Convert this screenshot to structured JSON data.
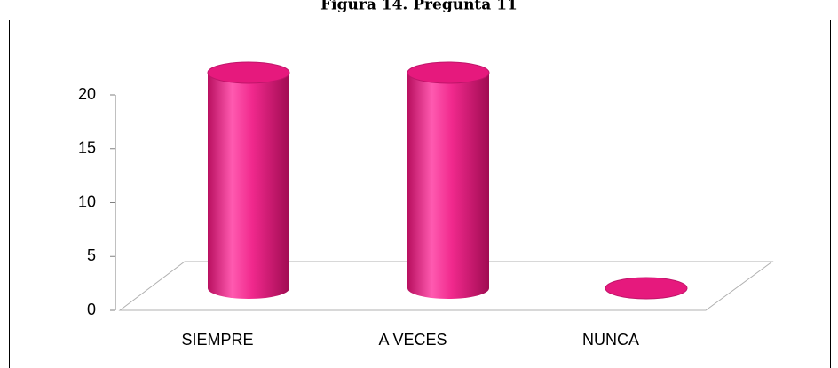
{
  "chart_data": {
    "type": "bar3d",
    "title": "Figura 14. Pregunta 11",
    "categories": [
      "SIEMPRE",
      "A VECES",
      "NUNCA"
    ],
    "values": [
      20,
      20,
      0
    ],
    "color": "#e6197d",
    "ylim": [
      0,
      20
    ],
    "yticks": [
      0,
      5,
      10,
      15,
      20
    ]
  }
}
